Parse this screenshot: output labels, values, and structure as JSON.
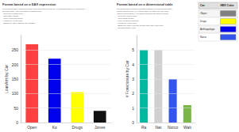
{
  "chart_data": [
    {
      "type": "bar",
      "title": "Format based on a DAX expression",
      "annotations": [
        "In the below table I changed colors of the bars based on the DAX expression which you can find in",
        "the Cars Table. The expression is added in the:",
        "- Go to the Format Pane",
        "- Data (Bar) Colors",
        "- Click Advanced Colors",
        "- Format by: Field Value",
        "- Based on Value: Choose the measure"
      ],
      "ylabel": "LoanAmt by Car",
      "categories": [
        "Open",
        "Ko",
        "Drugs",
        "Jones"
      ],
      "values": [
        270,
        220,
        105,
        40
      ],
      "colors": [
        "#ff4040",
        "#0000ee",
        "#ffff00",
        "#111111"
      ],
      "ylim": [
        0,
        300
      ],
      "yticks": [
        0,
        50,
        100,
        150,
        200,
        250
      ],
      "grid": true
    },
    {
      "type": "bar",
      "title": "Format based on a dimensional table",
      "annotations": [
        "The below table contains formatting based on a dimensional table",
        "(Cars) looking at the @Hexcolor table, we have the HEX color",
        "codes in there as well. We added following the same process:",
        "- Go to the Format Pane",
        "- Click (Data) Colors",
        "- Click Advanced Controls",
        "- Format by: Field Value",
        "- Based on Value: Pick the column with HEX color code",
        "- Summarization: First"
      ],
      "ylabel": "# Foreclosure by Car",
      "categories": [
        "Ra",
        "Nat",
        "Norco",
        "Walt"
      ],
      "values": [
        5,
        5,
        3,
        1.2
      ],
      "colors": [
        "#00b8a0",
        "#d0d0d0",
        "#3355ee",
        "#7ab648"
      ],
      "ylim": [
        0,
        6
      ],
      "yticks": [
        0,
        1,
        2,
        3,
        4,
        5
      ],
      "grid": true
    },
    {
      "type": "table",
      "columns": [
        "Car",
        "HEX Color"
      ],
      "categories": [
        "Object",
        "Drugs",
        "Anthropologie",
        "Norco"
      ],
      "colors": [
        "#808080",
        "#ffff00",
        "#0000ee",
        "#3355ee"
      ]
    }
  ]
}
